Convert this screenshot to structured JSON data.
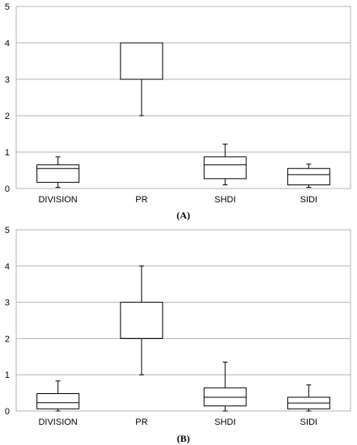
{
  "chart_data": [
    {
      "type": "boxplot",
      "panel_label": "(A)",
      "categories": [
        "DIVISION",
        "PR",
        "SHDI",
        "SIDI"
      ],
      "ylim": [
        0,
        5
      ],
      "yticks": [
        "0",
        "1",
        "2",
        "3",
        "4",
        "5"
      ],
      "grid": true,
      "boxes": [
        {
          "min": 0.03,
          "q1": 0.17,
          "median": 0.55,
          "q3": 0.65,
          "max": 0.87
        },
        {
          "min": 2.0,
          "q1": 3.0,
          "median": 3.0,
          "q3": 4.0,
          "max": 4.0
        },
        {
          "min": 0.1,
          "q1": 0.27,
          "median": 0.65,
          "q3": 0.87,
          "max": 1.22
        },
        {
          "min": 0.03,
          "q1": 0.1,
          "median": 0.38,
          "q3": 0.55,
          "max": 0.67
        }
      ]
    },
    {
      "type": "boxplot",
      "panel_label": "(B)",
      "categories": [
        "DIVISION",
        "PR",
        "SHDI",
        "SIDI"
      ],
      "ylim": [
        0,
        5
      ],
      "yticks": [
        "0",
        "1",
        "2",
        "3",
        "4",
        "5"
      ],
      "grid": true,
      "boxes": [
        {
          "min": 0.0,
          "q1": 0.06,
          "median": 0.23,
          "q3": 0.48,
          "max": 0.83
        },
        {
          "min": 1.0,
          "q1": 2.0,
          "median": 2.0,
          "q3": 3.0,
          "max": 4.0
        },
        {
          "min": 0.0,
          "q1": 0.14,
          "median": 0.38,
          "q3": 0.64,
          "max": 1.35
        },
        {
          "min": 0.0,
          "q1": 0.06,
          "median": 0.22,
          "q3": 0.38,
          "max": 0.72
        }
      ]
    }
  ]
}
